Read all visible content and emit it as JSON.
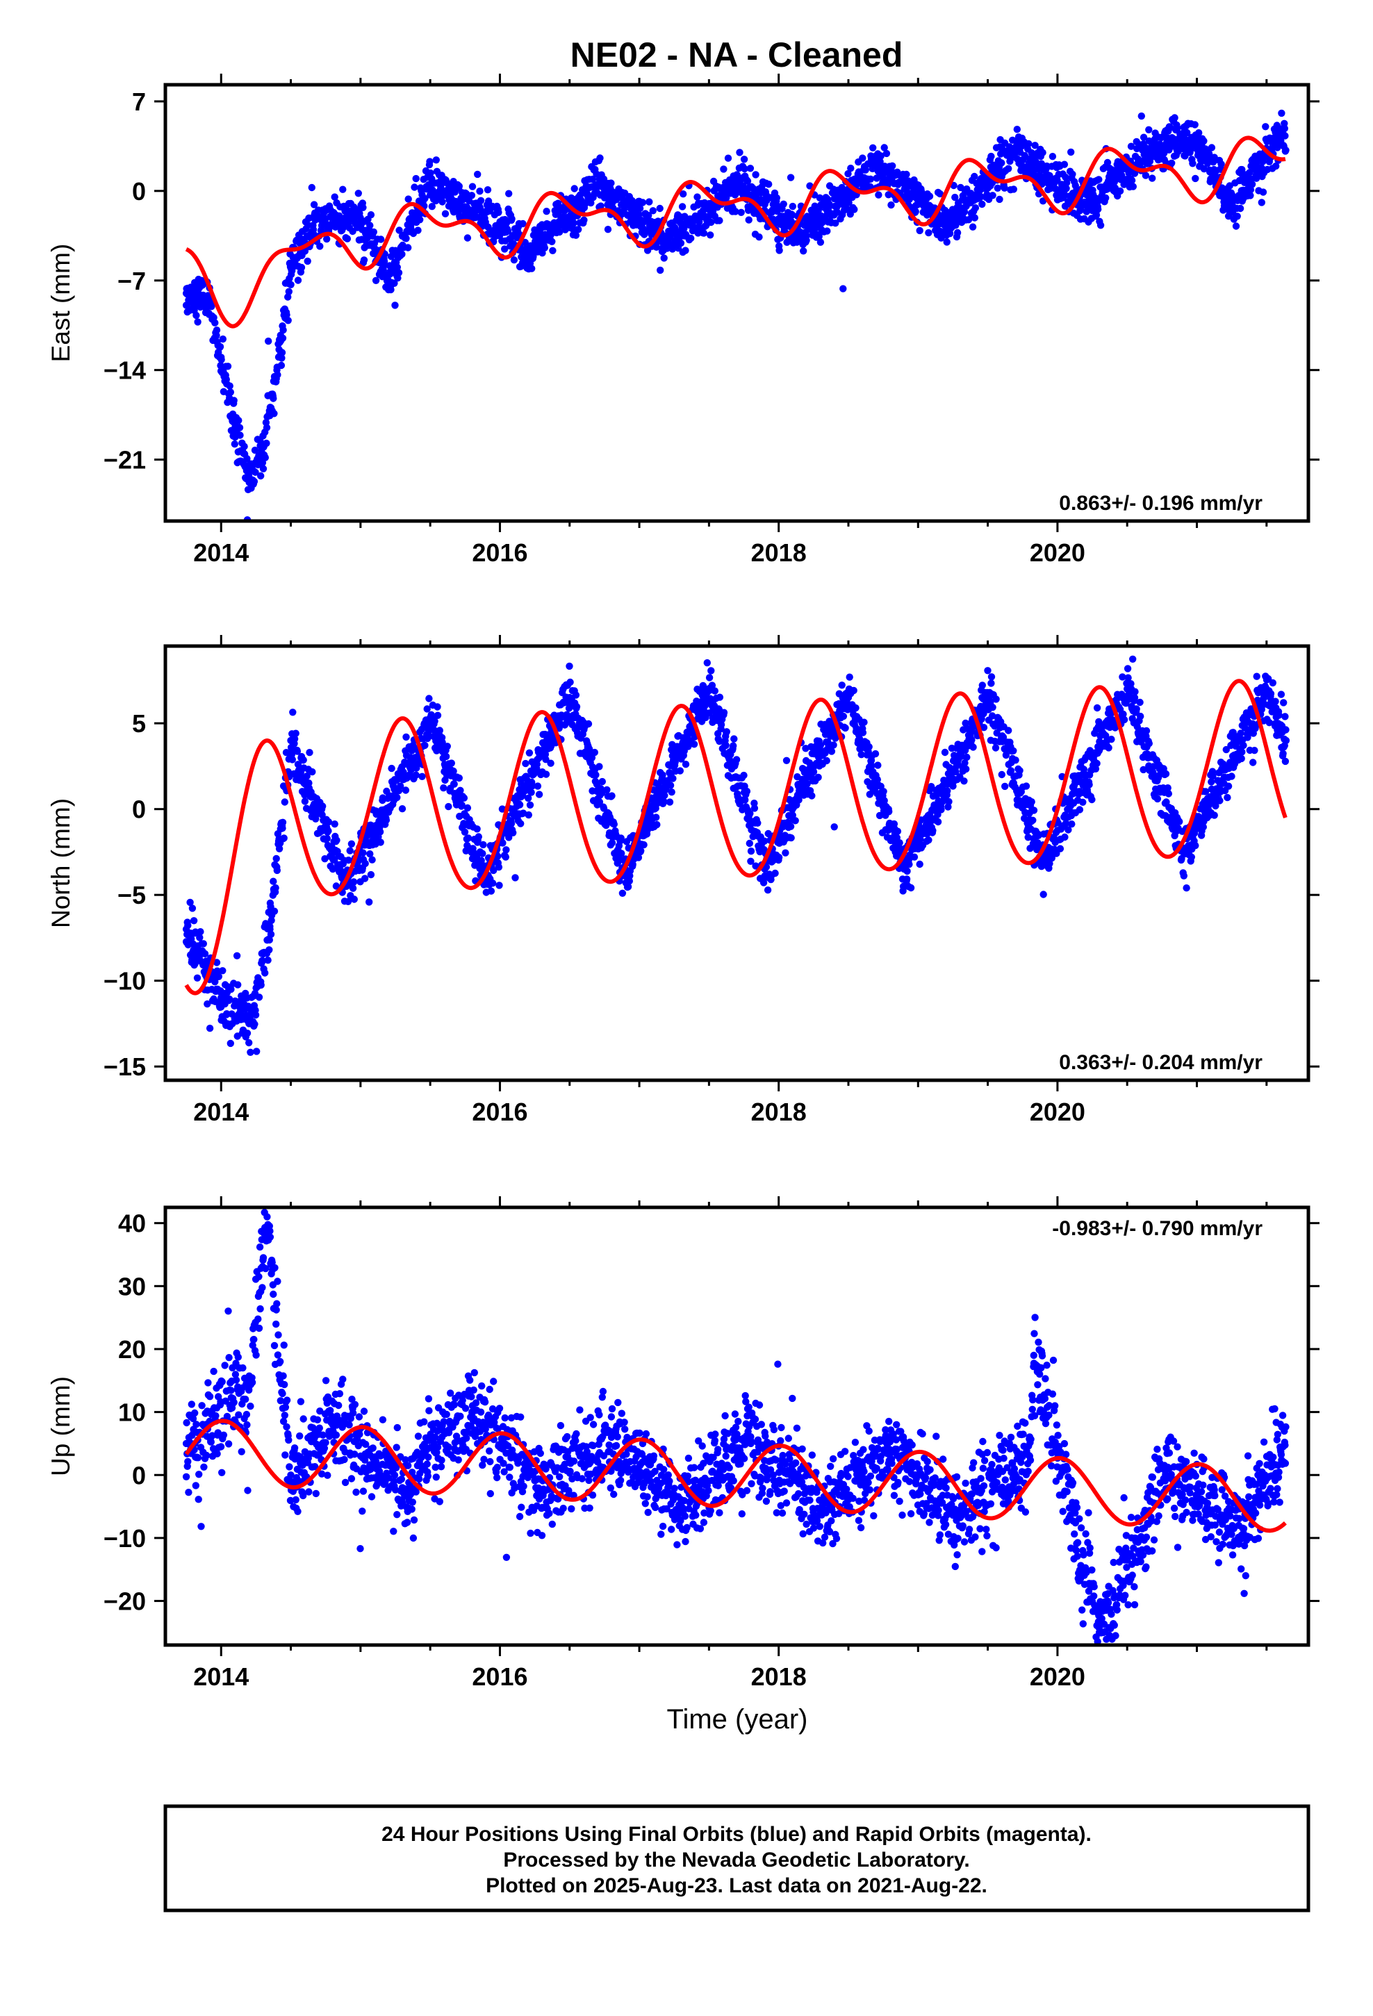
{
  "title": "NE02  - NA - Cleaned",
  "colors": {
    "final_orbits": "#0000ff",
    "fit": "#ff0000",
    "frame": "#000000"
  },
  "footer": {
    "line1": "24 Hour Positions Using Final Orbits (blue) and Rapid Orbits (magenta).",
    "line2": "Processed by the Nevada Geodetic Laboratory.",
    "line3": "Plotted on 2025-Aug-23. Last data on 2021-Aug-22."
  },
  "chart_data": [
    {
      "type": "scatter",
      "ylabel": "East (mm)",
      "xlabel": "",
      "xlim": [
        2013.6,
        2021.8
      ],
      "ylim": [
        -25.8,
        8.3
      ],
      "x_ticks": [
        2014,
        2016,
        2018,
        2020
      ],
      "y_ticks": [
        -21,
        -14,
        -7,
        0,
        7
      ],
      "rate_label": "0.863+/- 0.196 mm/yr",
      "rate_position": "bottom-right",
      "data_span": [
        2013.75,
        2021.64
      ],
      "series": [
        {
          "name": "Final Orbits",
          "kind": "points",
          "sample": [
            [
              2013.75,
              -8.0
            ],
            [
              2013.9,
              -8.5
            ],
            [
              2014.0,
              -13.0
            ],
            [
              2014.1,
              -18.5
            ],
            [
              2014.2,
              -22.5
            ],
            [
              2014.3,
              -20.0
            ],
            [
              2014.4,
              -14.0
            ],
            [
              2014.5,
              -6.0
            ],
            [
              2014.7,
              -2.0
            ],
            [
              2015.0,
              -2.5
            ],
            [
              2015.2,
              -6.5
            ],
            [
              2015.5,
              0.5
            ],
            [
              2016.0,
              -2.5
            ],
            [
              2016.2,
              -5.0
            ],
            [
              2016.7,
              0.5
            ],
            [
              2017.2,
              -4.0
            ],
            [
              2017.7,
              0.5
            ],
            [
              2018.2,
              -3.5
            ],
            [
              2018.7,
              2.0
            ],
            [
              2019.2,
              -2.5
            ],
            [
              2019.7,
              3.0
            ],
            [
              2020.2,
              -1.0
            ],
            [
              2020.7,
              3.5
            ],
            [
              2021.0,
              4.0
            ],
            [
              2021.25,
              -1.0
            ],
            [
              2021.6,
              4.5
            ]
          ]
        },
        {
          "name": "Fit",
          "kind": "seasonal-fit",
          "offset": -1.17,
          "trend": 0.863,
          "ref_year": 2017.7,
          "annual": [
            -1.7,
            0.2
          ],
          "semiannual": [
            -0.7,
            -0.8
          ],
          "extra": {
            "amplitude": -4.5,
            "center": 2014.2,
            "width": 0.3
          }
        }
      ]
    },
    {
      "type": "scatter",
      "ylabel": "North (mm)",
      "xlabel": "",
      "xlim": [
        2013.6,
        2021.8
      ],
      "ylim": [
        -15.8,
        9.5
      ],
      "x_ticks": [
        2014,
        2016,
        2018,
        2020
      ],
      "y_ticks": [
        -15,
        -10,
        -5,
        0,
        5
      ],
      "rate_label": "0.363+/- 0.204 mm/yr",
      "rate_position": "bottom-right",
      "data_span": [
        2013.75,
        2021.64
      ],
      "series": [
        {
          "name": "Final Orbits",
          "kind": "points",
          "sample": [
            [
              2013.75,
              -7.0
            ],
            [
              2013.9,
              -9.0
            ],
            [
              2014.0,
              -11.0
            ],
            [
              2014.2,
              -12.5
            ],
            [
              2014.35,
              -7.0
            ],
            [
              2014.5,
              4.0
            ],
            [
              2014.9,
              -4.5
            ],
            [
              2015.5,
              5.0
            ],
            [
              2015.9,
              -4.0
            ],
            [
              2016.5,
              6.5
            ],
            [
              2016.9,
              -3.5
            ],
            [
              2017.5,
              7.0
            ],
            [
              2017.9,
              -3.5
            ],
            [
              2018.5,
              6.5
            ],
            [
              2018.9,
              -3.5
            ],
            [
              2019.5,
              6.5
            ],
            [
              2019.9,
              -3.0
            ],
            [
              2020.5,
              7.0
            ],
            [
              2020.9,
              -2.5
            ],
            [
              2021.5,
              7.0
            ],
            [
              2021.64,
              4.0
            ]
          ]
        },
        {
          "name": "Fit",
          "kind": "seasonal-fit",
          "offset": 0.85,
          "trend": 0.363,
          "ref_year": 2017.7,
          "annual": [
            -1.5,
            4.8
          ],
          "semiannual": [
            -0.2,
            -0.2
          ],
          "extra": {
            "amplitude": -5.5,
            "center": 2013.85,
            "width": 0.35
          }
        }
      ]
    },
    {
      "type": "scatter",
      "ylabel": "Up (mm)",
      "xlabel": "Time (year)",
      "xlim": [
        2013.6,
        2021.8
      ],
      "ylim": [
        -27.0,
        42.5
      ],
      "x_ticks": [
        2014,
        2016,
        2018,
        2020
      ],
      "y_ticks": [
        -20,
        -10,
        0,
        10,
        20,
        30,
        40
      ],
      "rate_label": "-0.983+/- 0.790 mm/yr",
      "rate_position": "top-right",
      "data_span": [
        2013.75,
        2021.64
      ],
      "series": [
        {
          "name": "Final Orbits",
          "kind": "points",
          "sample": [
            [
              2013.75,
              5.0
            ],
            [
              2014.2,
              14.0
            ],
            [
              2014.33,
              41.0
            ],
            [
              2014.5,
              0.0
            ],
            [
              2014.8,
              8.0
            ],
            [
              2015.3,
              -2.0
            ],
            [
              2015.8,
              10.0
            ],
            [
              2016.3,
              -3.0
            ],
            [
              2016.8,
              6.0
            ],
            [
              2017.3,
              -5.0
            ],
            [
              2017.8,
              5.0
            ],
            [
              2018.3,
              -6.0
            ],
            [
              2018.8,
              4.0
            ],
            [
              2019.3,
              -6.0
            ],
            [
              2019.8,
              3.0
            ],
            [
              2019.83,
              19.0
            ],
            [
              2020.2,
              -15.0
            ],
            [
              2020.3,
              -25.0
            ],
            [
              2020.8,
              1.0
            ],
            [
              2021.3,
              -8.0
            ],
            [
              2021.6,
              4.0
            ]
          ]
        },
        {
          "name": "Fit",
          "kind": "seasonal-fit",
          "offset": -0.06,
          "trend": -0.983,
          "ref_year": 2017.7,
          "annual": [
            5.0,
            0.5
          ],
          "semiannual": [
            0.0,
            0.0
          ]
        }
      ]
    }
  ]
}
